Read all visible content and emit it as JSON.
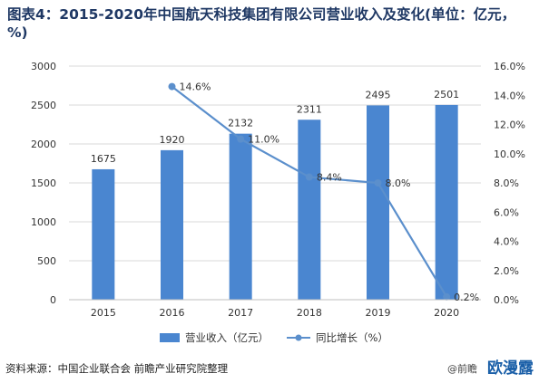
{
  "title": "图表4：2015-2020年中国航天科技集团有限公司营业收入及变化(单位：亿元，%)",
  "source": "资料来源：中国企业联合会 前瞻产业研究院整理",
  "watermark": {
    "corner_prefix": "@前瞻",
    "corner_logo": "欧漫露"
  },
  "colors": {
    "bar": "#4a86d0",
    "line": "#5b8fcc",
    "title": "#1f3864",
    "axis_text": "#333333",
    "grid": "#d9d9d9"
  },
  "chart_data": {
    "type": "bar",
    "categories": [
      "2015",
      "2016",
      "2017",
      "2018",
      "2019",
      "2020"
    ],
    "series": [
      {
        "name": "营业收入（亿元）",
        "type": "bar",
        "axis": "left",
        "values": [
          1675,
          1920,
          2132,
          2311,
          2495,
          2501
        ],
        "labels": [
          "1675",
          "1920",
          "2132",
          "2311",
          "2495",
          "2501"
        ]
      },
      {
        "name": "同比增长（%）",
        "type": "line",
        "axis": "right",
        "values": [
          null,
          14.6,
          11.0,
          8.4,
          8.0,
          0.2
        ],
        "labels": [
          "",
          "14.6%",
          "11.0%",
          "8.4%",
          "8.0%",
          "0.2%"
        ]
      }
    ],
    "y_left": {
      "min": 0,
      "max": 3000,
      "step": 500,
      "ticks": [
        "0",
        "500",
        "1000",
        "1500",
        "2000",
        "2500",
        "3000"
      ]
    },
    "y_right": {
      "min": 0,
      "max": 16,
      "step": 2,
      "ticks": [
        "0.0%",
        "2.0%",
        "4.0%",
        "6.0%",
        "8.0%",
        "10.0%",
        "12.0%",
        "14.0%",
        "16.0%"
      ]
    },
    "grid": true,
    "legend": "bottom"
  }
}
